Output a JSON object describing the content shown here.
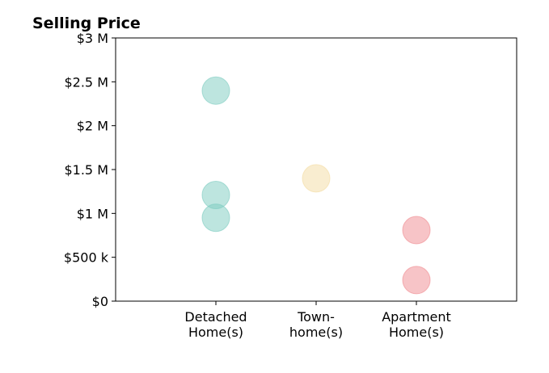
{
  "chart_data": {
    "type": "scatter",
    "title": "Selling Price",
    "xlabel": "",
    "ylabel": "",
    "categories": [
      [
        "Detached",
        "Home(s)"
      ],
      [
        "Town-",
        "home(s)"
      ],
      [
        "Apartment",
        "Home(s)"
      ]
    ],
    "y_ticks": [
      {
        "value": 0,
        "label": "$0"
      },
      {
        "value": 500000,
        "label": "$500 k"
      },
      {
        "value": 1000000,
        "label": "$1 M"
      },
      {
        "value": 1500000,
        "label": "$1.5 M"
      },
      {
        "value": 2000000,
        "label": "$2 M"
      },
      {
        "value": 2500000,
        "label": "$2.5 M"
      },
      {
        "value": 3000000,
        "label": "$3 M"
      }
    ],
    "ylim": [
      0,
      3000000
    ],
    "xlim": [
      0,
      4
    ],
    "grid": false,
    "points": [
      {
        "category": "Detached Home(s)",
        "x": 1,
        "y": 2400000,
        "color": "#7ccbbf"
      },
      {
        "category": "Detached Home(s)",
        "x": 1,
        "y": 1210000,
        "color": "#7ccbbf"
      },
      {
        "category": "Detached Home(s)",
        "x": 1,
        "y": 950000,
        "color": "#7ccbbf"
      },
      {
        "category": "Town-home(s)",
        "x": 2,
        "y": 1400000,
        "color": "#f4dca2"
      },
      {
        "category": "Apartment Home(s)",
        "x": 3,
        "y": 810000,
        "color": "#f08a90"
      },
      {
        "category": "Apartment Home(s)",
        "x": 3,
        "y": 240000,
        "color": "#f08a90"
      }
    ]
  }
}
